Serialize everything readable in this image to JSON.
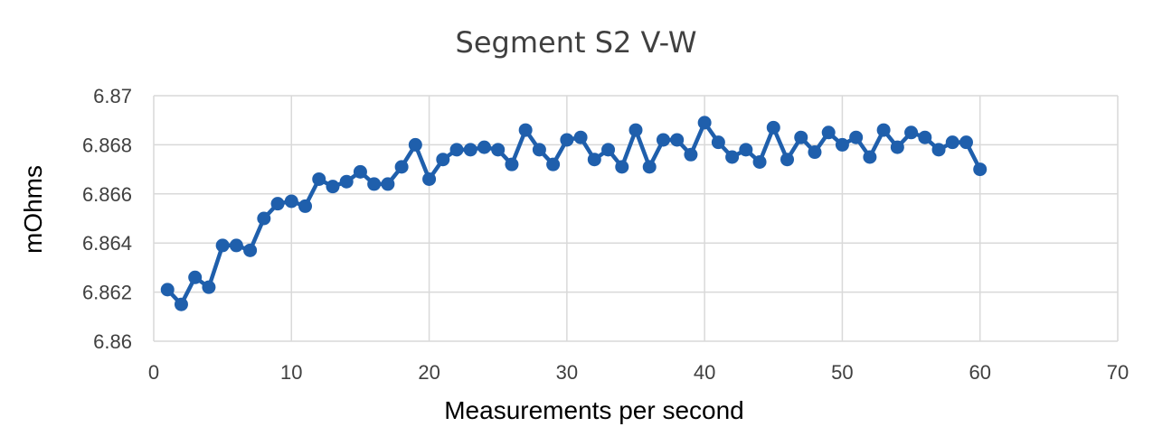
{
  "chart_data": {
    "type": "line",
    "title": "Segment S2 V-W",
    "xlabel": "Measurements per second",
    "ylabel": "mOhms",
    "xlim": [
      0,
      70
    ],
    "ylim": [
      6.86,
      6.87
    ],
    "x_ticks": [
      "0",
      "10",
      "20",
      "30",
      "40",
      "50",
      "60",
      "70"
    ],
    "x_tick_values": [
      0,
      10,
      20,
      30,
      40,
      50,
      60,
      70
    ],
    "y_ticks": [
      "6.86",
      "6.862",
      "6.864",
      "6.866",
      "6.868",
      "6.87"
    ],
    "y_tick_values": [
      6.86,
      6.862,
      6.864,
      6.866,
      6.868,
      6.87
    ],
    "grid": true,
    "legend": "none",
    "color": "#1f5fac",
    "marker": "circle",
    "series": [
      {
        "x": [
          1,
          2,
          3,
          4,
          5,
          6,
          7,
          8,
          9,
          10,
          11,
          12,
          13,
          14,
          15,
          16,
          17,
          18,
          19,
          20,
          21,
          22,
          23,
          24,
          25,
          26,
          27,
          28,
          29,
          30,
          31,
          32,
          33,
          34,
          35,
          36,
          37,
          38,
          39,
          40,
          41,
          42,
          43,
          44,
          45,
          46,
          47,
          48,
          49,
          50,
          51,
          52,
          53,
          54,
          55,
          56,
          57,
          58,
          59,
          60
        ],
        "y": [
          6.8621,
          6.8615,
          6.8626,
          6.8622,
          6.8639,
          6.8639,
          6.8637,
          6.865,
          6.8656,
          6.8657,
          6.8655,
          6.8666,
          6.8663,
          6.8665,
          6.8669,
          6.8664,
          6.8664,
          6.8671,
          6.868,
          6.8666,
          6.8674,
          6.8678,
          6.8678,
          6.8679,
          6.8678,
          6.8672,
          6.8686,
          6.8678,
          6.8672,
          6.8682,
          6.8683,
          6.8674,
          6.8678,
          6.8671,
          6.8686,
          6.8671,
          6.8682,
          6.8682,
          6.8676,
          6.8689,
          6.8681,
          6.8675,
          6.8678,
          6.8673,
          6.8687,
          6.8674,
          6.8683,
          6.8677,
          6.8685,
          6.868,
          6.8683,
          6.8675,
          6.8686,
          6.8679,
          6.8685,
          6.8683,
          6.8678,
          6.8681,
          6.8681,
          6.867
        ]
      }
    ]
  }
}
